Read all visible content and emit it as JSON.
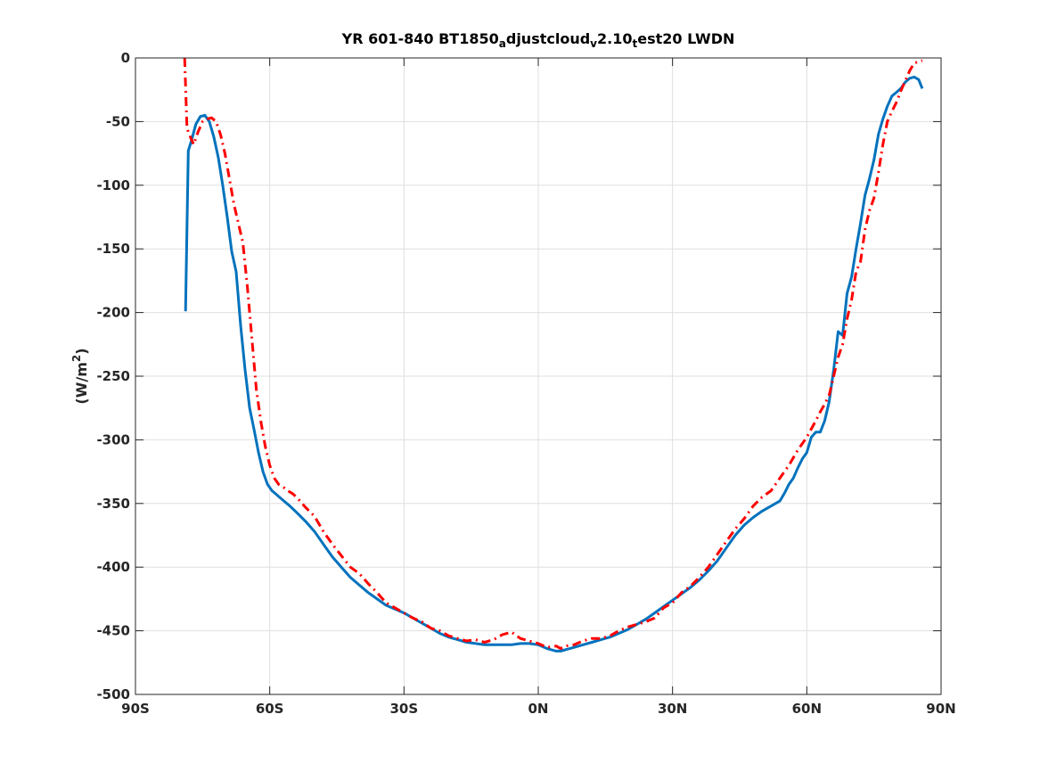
{
  "chart_data": {
    "type": "line",
    "title": {
      "parts": [
        {
          "text": "YR 601-840 BT1850",
          "sub": false
        },
        {
          "text": "a",
          "sub": true
        },
        {
          "text": "djustcloud",
          "sub": false
        },
        {
          "text": "v",
          "sub": true
        },
        {
          "text": "2.10",
          "sub": false
        },
        {
          "text": "t",
          "sub": true
        },
        {
          "text": "est20 LWDN",
          "sub": false
        }
      ]
    },
    "ylabel": {
      "prefix": "(W/m",
      "sup": "2",
      "suffix": ")"
    },
    "xlabel": "",
    "xlim": [
      -90,
      90
    ],
    "ylim": [
      -500,
      0
    ],
    "grid": true,
    "xticks": [
      {
        "value": -90,
        "label": "90S"
      },
      {
        "value": -60,
        "label": "60S"
      },
      {
        "value": -30,
        "label": "30S"
      },
      {
        "value": 0,
        "label": "0N"
      },
      {
        "value": 30,
        "label": "30N"
      },
      {
        "value": 60,
        "label": "60N"
      },
      {
        "value": 90,
        "label": "90N"
      }
    ],
    "yticks": [
      {
        "value": 0,
        "label": "0"
      },
      {
        "value": -50,
        "label": "-50"
      },
      {
        "value": -100,
        "label": "-100"
      },
      {
        "value": -150,
        "label": "-150"
      },
      {
        "value": -200,
        "label": "-200"
      },
      {
        "value": -250,
        "label": "-250"
      },
      {
        "value": -300,
        "label": "-300"
      },
      {
        "value": -350,
        "label": "-350"
      },
      {
        "value": -400,
        "label": "-400"
      },
      {
        "value": -450,
        "label": "-450"
      },
      {
        "value": -500,
        "label": "-500"
      }
    ],
    "series": [
      {
        "style": "solid",
        "color": "#0072BD",
        "x": [
          -78.8,
          -78.2,
          -77.5,
          -76.5,
          -75.5,
          -74.5,
          -73.5,
          -72.5,
          -71.5,
          -70.5,
          -69.5,
          -68.5,
          -67.5,
          -66.5,
          -65.5,
          -64.5,
          -63.5,
          -62.5,
          -61.5,
          -60.5,
          -59.5,
          -58.5,
          -57.5,
          -56.5,
          -55.5,
          -54,
          -52,
          -50,
          -48,
          -46,
          -44,
          -42,
          -40,
          -38,
          -36,
          -34,
          -32,
          -30,
          -28,
          -26,
          -24,
          -22,
          -20,
          -18,
          -16,
          -14,
          -12,
          -10,
          -8,
          -6,
          -4,
          -2,
          0,
          2,
          4,
          5,
          6,
          8,
          10,
          12,
          14,
          16,
          18,
          20,
          22,
          24,
          26,
          28,
          30,
          32,
          34,
          36,
          38,
          40,
          42,
          44,
          46,
          48,
          50,
          52,
          53,
          54,
          55,
          56,
          57,
          58,
          59,
          60,
          61,
          62,
          63,
          64,
          65,
          66,
          67,
          68,
          69,
          70,
          71,
          72,
          73,
          74,
          75,
          76,
          77,
          78,
          79,
          80,
          81,
          82,
          83,
          84,
          85,
          85.8
        ],
        "y": [
          -199,
          -73,
          -65,
          -52,
          -46,
          -45,
          -50,
          -62,
          -78,
          -100,
          -125,
          -152,
          -168,
          -210,
          -245,
          -275,
          -292,
          -310,
          -325,
          -335,
          -340,
          -343,
          -346,
          -349,
          -352,
          -357,
          -364,
          -372,
          -382,
          -392,
          -400,
          -408,
          -414,
          -420,
          -425,
          -430,
          -433,
          -436,
          -440,
          -444,
          -448,
          -452,
          -455,
          -457,
          -459,
          -460,
          -461,
          -461,
          -461,
          -461,
          -460,
          -460,
          -461,
          -464,
          -466,
          -466,
          -465,
          -463,
          -461,
          -459,
          -457,
          -455,
          -452,
          -449,
          -445,
          -441,
          -436,
          -431,
          -426,
          -421,
          -416,
          -410,
          -403,
          -395,
          -385,
          -375,
          -367,
          -361,
          -356,
          -352,
          -350,
          -348,
          -342,
          -335,
          -330,
          -322,
          -315,
          -310,
          -298,
          -294,
          -294,
          -285,
          -270,
          -245,
          -215,
          -218,
          -185,
          -172,
          -150,
          -130,
          -108,
          -95,
          -80,
          -60,
          -48,
          -38,
          -30,
          -27,
          -24,
          -19,
          -16,
          -15,
          -17,
          -24
        ]
      },
      {
        "style": "dashdot",
        "color": "#FF0000",
        "x": [
          -79,
          -78.5,
          -78,
          -77,
          -76,
          -75,
          -74,
          -73,
          -72,
          -71,
          -70,
          -69,
          -68,
          -67,
          -66,
          -65,
          -64,
          -63,
          -62,
          -61,
          -60,
          -59,
          -58,
          -57,
          -56,
          -55,
          -54,
          -52,
          -50,
          -48,
          -46,
          -44,
          -42,
          -40,
          -38,
          -36,
          -34,
          -32,
          -30,
          -28,
          -26,
          -24,
          -22,
          -20,
          -18,
          -16,
          -14,
          -12,
          -10,
          -8,
          -6,
          -4,
          -2,
          0,
          2,
          4,
          5,
          6,
          8,
          10,
          12,
          14,
          16,
          18,
          20,
          22,
          24,
          26,
          28,
          30,
          32,
          34,
          36,
          38,
          40,
          42,
          44,
          46,
          48,
          50,
          52,
          54,
          56,
          58,
          60,
          62,
          63,
          64,
          65,
          66,
          67,
          68,
          69,
          70,
          71,
          72,
          73,
          74,
          75,
          76,
          77,
          78,
          79,
          80,
          81,
          82,
          83,
          84,
          85,
          85.8
        ],
        "y": [
          0,
          -55,
          -60,
          -68,
          -58,
          -50,
          -48,
          -47,
          -50,
          -60,
          -75,
          -95,
          -115,
          -130,
          -145,
          -180,
          -220,
          -260,
          -285,
          -305,
          -320,
          -330,
          -335,
          -337,
          -340,
          -342,
          -345,
          -353,
          -360,
          -372,
          -382,
          -391,
          -400,
          -405,
          -413,
          -420,
          -428,
          -432,
          -436,
          -440,
          -443,
          -448,
          -450,
          -454,
          -456,
          -458,
          -457,
          -459,
          -457,
          -453,
          -451,
          -456,
          -458,
          -460,
          -463,
          -462,
          -464,
          -462,
          -461,
          -458,
          -456,
          -456,
          -454,
          -450,
          -447,
          -445,
          -443,
          -440,
          -432,
          -428,
          -420,
          -415,
          -408,
          -400,
          -390,
          -380,
          -370,
          -362,
          -352,
          -345,
          -340,
          -330,
          -320,
          -308,
          -298,
          -285,
          -278,
          -272,
          -265,
          -250,
          -235,
          -225,
          -205,
          -190,
          -168,
          -160,
          -135,
          -120,
          -110,
          -90,
          -68,
          -50,
          -42,
          -35,
          -26,
          -18,
          -10,
          -4,
          -3,
          -2
        ]
      }
    ]
  }
}
